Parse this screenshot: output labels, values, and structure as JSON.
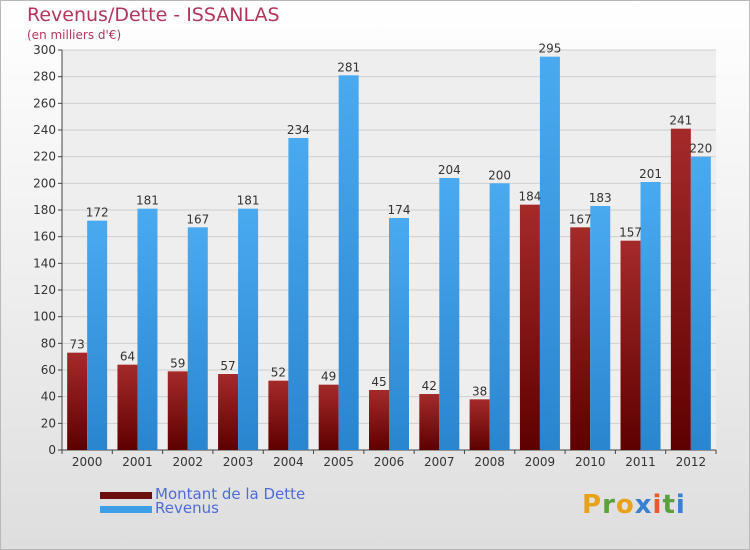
{
  "header": {
    "title": "Revenus/Dette - ISSANLAS",
    "subtitle": "(en milliers d'€)"
  },
  "chart_data": {
    "type": "bar",
    "categories": [
      "2000",
      "2001",
      "2002",
      "2003",
      "2004",
      "2005",
      "2006",
      "2007",
      "2008",
      "2009",
      "2010",
      "2011",
      "2012"
    ],
    "series": [
      {
        "name": "Montant de la Dette",
        "values": [
          73,
          64,
          59,
          57,
          52,
          49,
          45,
          42,
          38,
          184,
          167,
          157,
          241
        ],
        "color": "#8b1a1a"
      },
      {
        "name": "Revenus",
        "values": [
          172,
          181,
          167,
          181,
          234,
          281,
          174,
          204,
          200,
          295,
          183,
          201,
          220
        ],
        "color": "#3f9fe6"
      }
    ],
    "ylim": [
      0,
      300
    ],
    "yticks": [
      0,
      20,
      40,
      60,
      80,
      100,
      120,
      140,
      160,
      180,
      200,
      220,
      240,
      260,
      280,
      300
    ],
    "grid": true,
    "legend_position": "bottom-left"
  },
  "legend": {
    "debt_label": "Montant de la Dette",
    "revenue_label": "Revenus"
  },
  "logo": {
    "text": [
      "P",
      "r",
      "o",
      "x",
      "i",
      "t",
      "i"
    ],
    "colors": [
      "#e8a21a",
      "#5aa03c",
      "#e8a21a",
      "#3a7fd0",
      "#e85a2a",
      "#5aa03c",
      "#3a7fd0"
    ]
  }
}
